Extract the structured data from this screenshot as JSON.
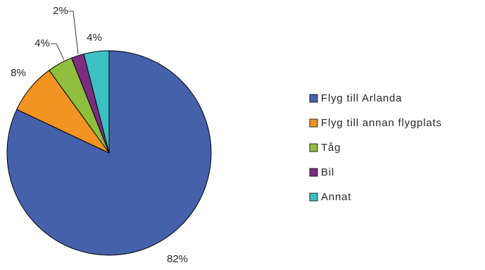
{
  "chart_data": {
    "type": "pie",
    "title": "",
    "categories": [
      "Flyg till Arlanda",
      "Flyg till annan flygplats",
      "Tåg",
      "Bil",
      "Annat"
    ],
    "values": [
      82,
      8,
      4,
      2,
      4
    ],
    "data_labels": [
      "82%",
      "8%",
      "4%",
      "2%",
      "4%"
    ],
    "colors": [
      "#4661AC",
      "#F39322",
      "#90BE3D",
      "#7B2D81",
      "#3BC0C4"
    ],
    "legend": {
      "placement": "right",
      "entries": [
        "Flyg till Arlanda",
        "Flyg till annan flygplats",
        "Tåg",
        "Bil",
        "Annat"
      ]
    },
    "start_angle_deg": 0,
    "direction": "clockwise",
    "slice_border_color": "#000000"
  }
}
